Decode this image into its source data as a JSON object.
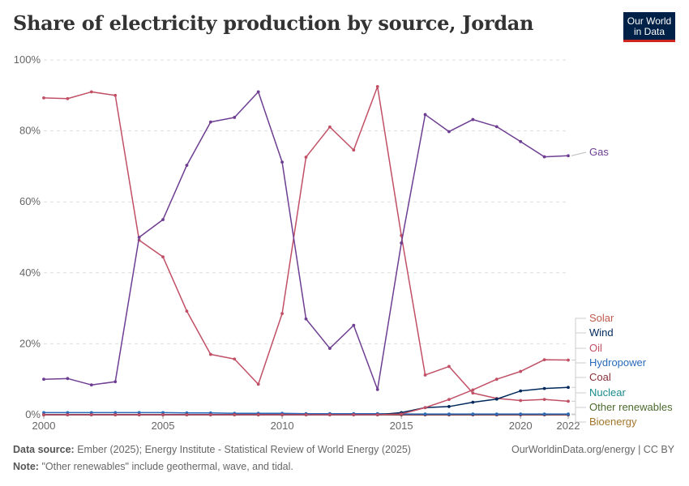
{
  "header": {
    "title": "Share of electricity production by source, Jordan",
    "logo_line1": "Our World",
    "logo_line2": "in Data"
  },
  "footer": {
    "source_label": "Data source:",
    "source_text": "Ember (2025); Energy Institute - Statistical Review of World Energy (2025)",
    "note_label": "Note:",
    "note_text": "\"Other renewables\" include geothermal, wave, and tidal.",
    "credit": "OurWorldinData.org/energy | CC BY"
  },
  "chart_data": {
    "type": "line",
    "title": "Share of electricity production by source, Jordan",
    "x": [
      2000,
      2001,
      2002,
      2003,
      2004,
      2005,
      2006,
      2007,
      2008,
      2009,
      2010,
      2011,
      2012,
      2013,
      2014,
      2015,
      2016,
      2017,
      2018,
      2019,
      2020,
      2021,
      2022
    ],
    "x_ticks": [
      "2000",
      "2005",
      "2010",
      "2015",
      "2020",
      "2022"
    ],
    "y_ticks": [
      "0%",
      "20%",
      "40%",
      "60%",
      "80%",
      "100%"
    ],
    "xlim": [
      2000,
      2022
    ],
    "ylim": [
      0,
      100
    ],
    "grid": true,
    "legend_placement": "right",
    "series": [
      {
        "name": "Gas",
        "color": "#6d3e91",
        "values": [
          10,
          10.2,
          8.4,
          9.3,
          50,
          55,
          70.3,
          82.5,
          83.8,
          91,
          71.2,
          27,
          18.7,
          25.2,
          7.1,
          48.4,
          84.6,
          79.8,
          83.2,
          81.2,
          77,
          72.7,
          73
        ]
      },
      {
        "name": "Solar",
        "color": "#c15065",
        "values": [
          0,
          0,
          0,
          0,
          0,
          0,
          0,
          0,
          0,
          0,
          0,
          0,
          0,
          0,
          0,
          0.2,
          2,
          4.3,
          7,
          10,
          12.2,
          15.5,
          15.4
        ]
      },
      {
        "name": "Wind",
        "color": "#00295b",
        "values": [
          0,
          0,
          0,
          0,
          0,
          0,
          0,
          0,
          0,
          0,
          0,
          0,
          0,
          0,
          0,
          0.6,
          2,
          2.3,
          3.5,
          4.4,
          6.7,
          7.4,
          7.7
        ]
      },
      {
        "name": "Oil",
        "color": "#c15065",
        "values": [
          89.3,
          89.1,
          91,
          90,
          49.2,
          44.5,
          29.2,
          17,
          15.7,
          8.6,
          28.5,
          72.6,
          81.1,
          74.6,
          92.5,
          50.5,
          11.2,
          13.6,
          6.1,
          4.6,
          4,
          4.3,
          3.8
        ]
      },
      {
        "name": "Hydropower",
        "color": "#286bbb",
        "values": [
          0.6,
          0.6,
          0.6,
          0.6,
          0.6,
          0.6,
          0.5,
          0.5,
          0.4,
          0.4,
          0.4,
          0.3,
          0.3,
          0.3,
          0.3,
          0.2,
          0.2,
          0.2,
          0.2,
          0.2,
          0.2,
          0.2,
          0.2
        ]
      },
      {
        "name": "Coal",
        "color": "#883039",
        "values": [
          0,
          0,
          0,
          0,
          0,
          0,
          0,
          0,
          0,
          0,
          0,
          0,
          0,
          0,
          0,
          0,
          0,
          0,
          0,
          0,
          0,
          0,
          0
        ]
      },
      {
        "name": "Nuclear",
        "color": "#1a8a8a",
        "values": [
          0,
          0,
          0,
          0,
          0,
          0,
          0,
          0,
          0,
          0,
          0,
          0,
          0,
          0,
          0,
          0,
          0,
          0,
          0,
          0,
          0,
          0,
          0
        ]
      },
      {
        "name": "Other renewables",
        "color": "#4c6a2d",
        "values": [
          0,
          0,
          0,
          0,
          0,
          0,
          0,
          0,
          0,
          0,
          0,
          0,
          0,
          0,
          0,
          0,
          0,
          0,
          0,
          0,
          0,
          0,
          0
        ]
      },
      {
        "name": "Bioenergy",
        "color": "#a2752a",
        "values": [
          0,
          0,
          0,
          0,
          0,
          0,
          0,
          0,
          0,
          0,
          0,
          0,
          0,
          0,
          0,
          0,
          0,
          0,
          0,
          0,
          0,
          0,
          0
        ]
      }
    ]
  }
}
